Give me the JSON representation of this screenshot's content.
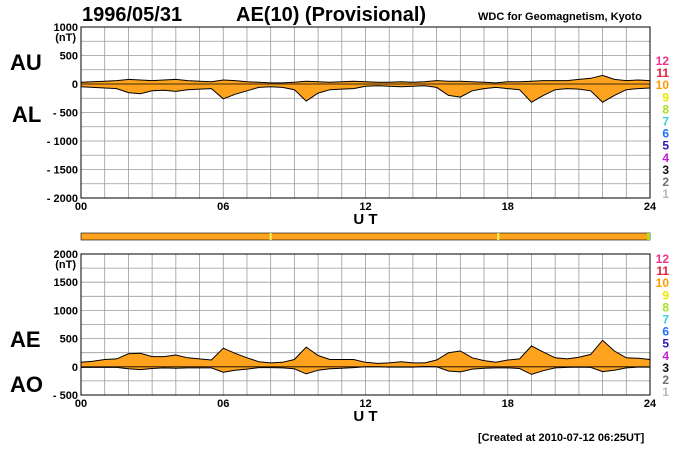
{
  "header": {
    "date": "1996/05/31",
    "title": "AE(10) (Provisional)",
    "organization": "WDC for Geomagnetism, Kyoto"
  },
  "footer": {
    "created": "[Created at 2010-07-12 06:25UT]"
  },
  "panel_labels": {
    "au": "AU",
    "al": "AL",
    "ae": "AE",
    "ao": "AO"
  },
  "colors": {
    "fill": "#ffa31f",
    "status_bar": "#ffa31f",
    "status_marker": "#f2f25a",
    "grid": "#9a9a9a"
  },
  "station_legend": [
    {
      "label": "12",
      "color": "#f0308a"
    },
    {
      "label": "11",
      "color": "#e01f3d"
    },
    {
      "label": "10",
      "color": "#ff9900"
    },
    {
      "label": "9",
      "color": "#e8e800"
    },
    {
      "label": "8",
      "color": "#a8e020"
    },
    {
      "label": "7",
      "color": "#3ad2d2"
    },
    {
      "label": "6",
      "color": "#1f6fff"
    },
    {
      "label": "5",
      "color": "#2a1ab0"
    },
    {
      "label": "4",
      "color": "#c41fd6"
    },
    {
      "label": "3",
      "color": "#101010"
    },
    {
      "label": "2",
      "color": "#707070"
    },
    {
      "label": "1",
      "color": "#b8b8b8"
    }
  ],
  "status_bar": {
    "markers_ut": [
      8,
      17.6
    ],
    "end_marker_ut": 24
  },
  "chart_data": [
    {
      "type": "area",
      "ylabel": "(nT)",
      "xlabel": "U T",
      "xlim": [
        0,
        24
      ],
      "ylim": [
        -2000,
        1000
      ],
      "y_ticks": [
        1000,
        500,
        0,
        -500,
        -1000,
        -1500,
        -2000
      ],
      "y_tick_labels": [
        "1000",
        "500",
        "0",
        "- 500",
        "- 1000",
        "- 1500",
        "- 2000"
      ],
      "x_ticks": [
        0,
        6,
        12,
        18,
        24
      ],
      "x_tick_labels": [
        "00",
        "06",
        "12",
        "18",
        "24"
      ],
      "grid": true,
      "series": [
        {
          "x": [
            0,
            0.5,
            1,
            1.5,
            2,
            2.5,
            3,
            3.5,
            4,
            4.5,
            5,
            5.5,
            6,
            6.5,
            7,
            7.5,
            8,
            8.5,
            9,
            9.5,
            10,
            10.5,
            11,
            11.5,
            12,
            12.5,
            13,
            13.5,
            14,
            14.5,
            15,
            15.5,
            16,
            16.5,
            17,
            17.5,
            18,
            18.5,
            19,
            19.5,
            20,
            20.5,
            21,
            21.5,
            22,
            22.5,
            23,
            23.5,
            24
          ],
          "values": [
            30,
            40,
            50,
            60,
            80,
            70,
            60,
            70,
            80,
            60,
            50,
            40,
            70,
            60,
            40,
            30,
            20,
            20,
            30,
            50,
            40,
            30,
            40,
            50,
            40,
            30,
            30,
            40,
            30,
            40,
            60,
            50,
            50,
            40,
            30,
            20,
            40,
            40,
            50,
            60,
            60,
            60,
            80,
            100,
            150,
            80,
            60,
            70,
            60
          ]
        },
        {
          "x": [
            0,
            0.5,
            1,
            1.5,
            2,
            2.5,
            3,
            3.5,
            4,
            4.5,
            5,
            5.5,
            6,
            6.5,
            7,
            7.5,
            8,
            8.5,
            9,
            9.5,
            10,
            10.5,
            11,
            11.5,
            12,
            12.5,
            13,
            13.5,
            14,
            14.5,
            15,
            15.5,
            16,
            16.5,
            17,
            17.5,
            18,
            18.5,
            19,
            19.5,
            20,
            20.5,
            21,
            21.5,
            22,
            22.5,
            23,
            23.5,
            24
          ],
          "values": [
            -50,
            -60,
            -70,
            -80,
            -150,
            -170,
            -120,
            -110,
            -130,
            -100,
            -90,
            -80,
            -260,
            -180,
            -120,
            -60,
            -50,
            -60,
            -100,
            -300,
            -160,
            -100,
            -90,
            -80,
            -40,
            -30,
            -40,
            -50,
            -40,
            -30,
            -60,
            -200,
            -230,
            -120,
            -80,
            -60,
            -80,
            -100,
            -320,
            -200,
            -100,
            -80,
            -90,
            -120,
            -320,
            -200,
            -100,
            -80,
            -70
          ]
        }
      ]
    },
    {
      "type": "area",
      "ylabel": "(nT)",
      "xlabel": "U T",
      "xlim": [
        0,
        24
      ],
      "ylim": [
        -500,
        2000
      ],
      "y_ticks": [
        2000,
        1500,
        1000,
        500,
        0,
        -500
      ],
      "y_tick_labels": [
        "2000",
        "1500",
        "1000",
        "500",
        "0",
        "- 500"
      ],
      "x_ticks": [
        0,
        6,
        12,
        18,
        24
      ],
      "x_tick_labels": [
        "00",
        "06",
        "12",
        "18",
        "24"
      ],
      "grid": true,
      "series": [
        {
          "x": [
            0,
            0.5,
            1,
            1.5,
            2,
            2.5,
            3,
            3.5,
            4,
            4.5,
            5,
            5.5,
            6,
            6.5,
            7,
            7.5,
            8,
            8.5,
            9,
            9.5,
            10,
            10.5,
            11,
            11.5,
            12,
            12.5,
            13,
            13.5,
            14,
            14.5,
            15,
            15.5,
            16,
            16.5,
            17,
            17.5,
            18,
            18.5,
            19,
            19.5,
            20,
            20.5,
            21,
            21.5,
            22,
            22.5,
            23,
            23.5,
            24
          ],
          "values": [
            80,
            100,
            130,
            140,
            230,
            240,
            180,
            180,
            210,
            160,
            140,
            120,
            330,
            240,
            160,
            90,
            70,
            80,
            130,
            350,
            200,
            130,
            130,
            130,
            80,
            60,
            70,
            90,
            70,
            70,
            120,
            250,
            280,
            160,
            110,
            80,
            120,
            140,
            370,
            260,
            160,
            140,
            170,
            220,
            470,
            280,
            160,
            150,
            130
          ]
        },
        {
          "x": [
            0,
            0.5,
            1,
            1.5,
            2,
            2.5,
            3,
            3.5,
            4,
            4.5,
            5,
            5.5,
            6,
            6.5,
            7,
            7.5,
            8,
            8.5,
            9,
            9.5,
            10,
            10.5,
            11,
            11.5,
            12,
            12.5,
            13,
            13.5,
            14,
            14.5,
            15,
            15.5,
            16,
            16.5,
            17,
            17.5,
            18,
            18.5,
            19,
            19.5,
            20,
            20.5,
            21,
            21.5,
            22,
            22.5,
            23,
            23.5,
            24
          ],
          "values": [
            -10,
            -10,
            -10,
            -10,
            -35,
            -50,
            -30,
            -20,
            -25,
            -20,
            -20,
            -20,
            -95,
            -60,
            -40,
            -15,
            -15,
            -20,
            -35,
            -125,
            -60,
            -35,
            -25,
            -15,
            0,
            0,
            -5,
            -5,
            -5,
            5,
            0,
            -75,
            -90,
            -40,
            -25,
            -20,
            -20,
            -30,
            -135,
            -70,
            -20,
            -10,
            -5,
            -10,
            -85,
            -60,
            -20,
            -5,
            -5
          ]
        }
      ]
    }
  ]
}
